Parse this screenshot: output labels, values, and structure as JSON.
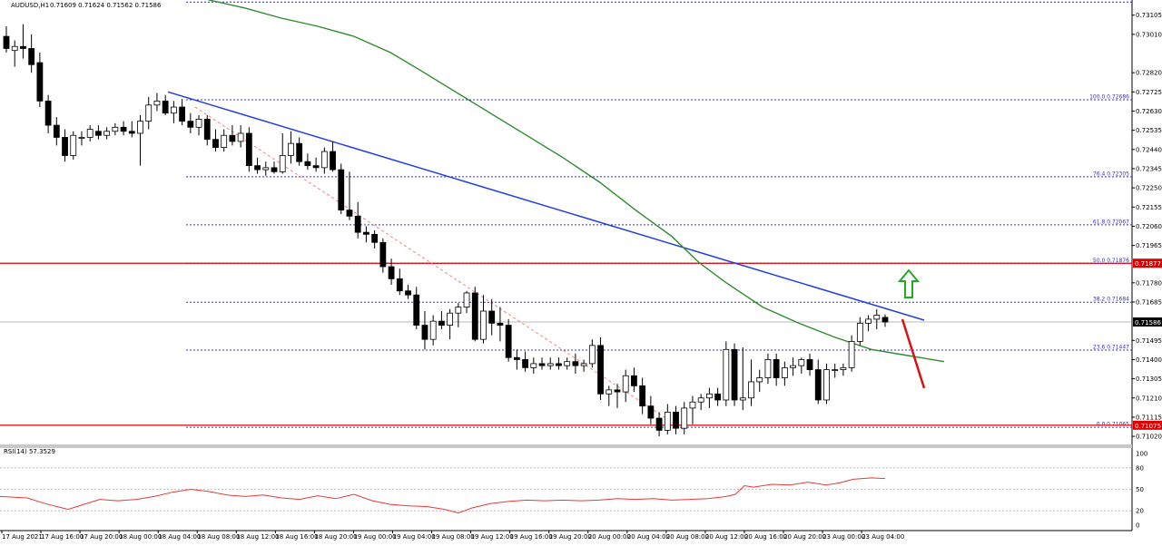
{
  "chart_data": {
    "type": "candlestick",
    "header": {
      "symbol": "AUDUSD,H1",
      "ohlc": "0.71609 0.71624 0.71562 0.71586"
    },
    "price_axis": {
      "ylim": [
        0.7098,
        0.7318
      ],
      "ticks": [
        "0.73105",
        "0.73010",
        "0.72820",
        "0.72725",
        "0.72630",
        "0.72535",
        "0.72440",
        "0.72345",
        "0.72250",
        "0.72155",
        "0.72060",
        "0.71965",
        "0.71780",
        "0.71685",
        "0.71495",
        "0.71400",
        "0.71305",
        "0.71210",
        "0.71115",
        "0.71020"
      ],
      "current_price": "0.71586"
    },
    "time_axis": {
      "labels": [
        "17 Aug 2021",
        "17 Aug 16:00",
        "17 Aug 20:00",
        "18 Aug 00:00",
        "18 Aug 04:00",
        "18 Aug 08:00",
        "18 Aug 12:00",
        "18 Aug 16:00",
        "18 Aug 20:00",
        "19 Aug 00:00",
        "19 Aug 04:00",
        "19 Aug 08:00",
        "19 Aug 12:00",
        "19 Aug 16:00",
        "19 Aug 20:00",
        "20 Aug 00:00",
        "20 Aug 04:00",
        "20 Aug 08:00",
        "20 Aug 12:00",
        "20 Aug 16:00",
        "20 Aug 20:00",
        "23 Aug 00:00",
        "23 Aug 04:00"
      ]
    },
    "candles": [
      {
        "o": 0.73,
        "h": 0.7305,
        "l": 0.7292,
        "c": 0.7294
      },
      {
        "o": 0.7293,
        "h": 0.7298,
        "l": 0.7285,
        "c": 0.7295
      },
      {
        "o": 0.7295,
        "h": 0.7306,
        "l": 0.7289,
        "c": 0.7294
      },
      {
        "o": 0.7294,
        "h": 0.7301,
        "l": 0.7282,
        "c": 0.7286
      },
      {
        "o": 0.7287,
        "h": 0.7292,
        "l": 0.7265,
        "c": 0.7268
      },
      {
        "o": 0.7268,
        "h": 0.7271,
        "l": 0.7252,
        "c": 0.7256
      },
      {
        "o": 0.7256,
        "h": 0.726,
        "l": 0.7246,
        "c": 0.725
      },
      {
        "o": 0.725,
        "h": 0.7254,
        "l": 0.7238,
        "c": 0.7241
      },
      {
        "o": 0.7241,
        "h": 0.7253,
        "l": 0.7239,
        "c": 0.7251
      },
      {
        "o": 0.725,
        "h": 0.7253,
        "l": 0.7246,
        "c": 0.725
      },
      {
        "o": 0.725,
        "h": 0.7256,
        "l": 0.7248,
        "c": 0.7254
      },
      {
        "o": 0.7253,
        "h": 0.7256,
        "l": 0.7249,
        "c": 0.7251
      },
      {
        "o": 0.7251,
        "h": 0.7255,
        "l": 0.7249,
        "c": 0.7253
      },
      {
        "o": 0.7253,
        "h": 0.7257,
        "l": 0.7251,
        "c": 0.7255
      },
      {
        "o": 0.7255,
        "h": 0.7258,
        "l": 0.7251,
        "c": 0.7253
      },
      {
        "o": 0.7253,
        "h": 0.7258,
        "l": 0.725,
        "c": 0.7252
      },
      {
        "o": 0.7252,
        "h": 0.7261,
        "l": 0.7236,
        "c": 0.7258
      },
      {
        "o": 0.7258,
        "h": 0.727,
        "l": 0.7254,
        "c": 0.7266
      },
      {
        "o": 0.7266,
        "h": 0.7272,
        "l": 0.7263,
        "c": 0.7268
      },
      {
        "o": 0.7268,
        "h": 0.7271,
        "l": 0.7261,
        "c": 0.7262
      },
      {
        "o": 0.7262,
        "h": 0.7268,
        "l": 0.7257,
        "c": 0.7265
      },
      {
        "o": 0.7265,
        "h": 0.7269,
        "l": 0.7256,
        "c": 0.7258
      },
      {
        "o": 0.7258,
        "h": 0.7262,
        "l": 0.7252,
        "c": 0.7255
      },
      {
        "o": 0.7255,
        "h": 0.7261,
        "l": 0.7251,
        "c": 0.7259
      },
      {
        "o": 0.7259,
        "h": 0.7261,
        "l": 0.7246,
        "c": 0.7249
      },
      {
        "o": 0.7249,
        "h": 0.7254,
        "l": 0.7243,
        "c": 0.7245
      },
      {
        "o": 0.7245,
        "h": 0.7254,
        "l": 0.7243,
        "c": 0.7251
      },
      {
        "o": 0.7251,
        "h": 0.7256,
        "l": 0.7246,
        "c": 0.7248
      },
      {
        "o": 0.7248,
        "h": 0.7256,
        "l": 0.7245,
        "c": 0.7252
      },
      {
        "o": 0.7252,
        "h": 0.7255,
        "l": 0.7233,
        "c": 0.7236
      },
      {
        "o": 0.7236,
        "h": 0.724,
        "l": 0.7232,
        "c": 0.7234
      },
      {
        "o": 0.7234,
        "h": 0.7238,
        "l": 0.7231,
        "c": 0.7235
      },
      {
        "o": 0.7235,
        "h": 0.7238,
        "l": 0.7232,
        "c": 0.7233
      },
      {
        "o": 0.7233,
        "h": 0.7252,
        "l": 0.7232,
        "c": 0.7241
      },
      {
        "o": 0.7241,
        "h": 0.7253,
        "l": 0.7237,
        "c": 0.7247
      },
      {
        "o": 0.7247,
        "h": 0.725,
        "l": 0.7236,
        "c": 0.7238
      },
      {
        "o": 0.7238,
        "h": 0.7242,
        "l": 0.7234,
        "c": 0.7236
      },
      {
        "o": 0.7236,
        "h": 0.724,
        "l": 0.7233,
        "c": 0.7235
      },
      {
        "o": 0.7235,
        "h": 0.7245,
        "l": 0.7232,
        "c": 0.7243
      },
      {
        "o": 0.7243,
        "h": 0.7248,
        "l": 0.7233,
        "c": 0.7234
      },
      {
        "o": 0.7234,
        "h": 0.7237,
        "l": 0.7212,
        "c": 0.7214
      },
      {
        "o": 0.7214,
        "h": 0.7233,
        "l": 0.7209,
        "c": 0.7211
      },
      {
        "o": 0.7211,
        "h": 0.7218,
        "l": 0.72,
        "c": 0.7203
      },
      {
        "o": 0.7203,
        "h": 0.7206,
        "l": 0.7198,
        "c": 0.7202
      },
      {
        "o": 0.7202,
        "h": 0.7204,
        "l": 0.7195,
        "c": 0.7198
      },
      {
        "o": 0.7198,
        "h": 0.72,
        "l": 0.7183,
        "c": 0.7186
      },
      {
        "o": 0.7186,
        "h": 0.719,
        "l": 0.7177,
        "c": 0.718
      },
      {
        "o": 0.718,
        "h": 0.7185,
        "l": 0.7172,
        "c": 0.7174
      },
      {
        "o": 0.7174,
        "h": 0.7177,
        "l": 0.717,
        "c": 0.7172
      },
      {
        "o": 0.7172,
        "h": 0.7176,
        "l": 0.7155,
        "c": 0.7157
      },
      {
        "o": 0.7157,
        "h": 0.7164,
        "l": 0.7145,
        "c": 0.715
      },
      {
        "o": 0.715,
        "h": 0.7162,
        "l": 0.7147,
        "c": 0.7159
      },
      {
        "o": 0.7159,
        "h": 0.7164,
        "l": 0.7155,
        "c": 0.7157
      },
      {
        "o": 0.7157,
        "h": 0.7165,
        "l": 0.715,
        "c": 0.7163
      },
      {
        "o": 0.7163,
        "h": 0.7168,
        "l": 0.7156,
        "c": 0.7166
      },
      {
        "o": 0.7166,
        "h": 0.7174,
        "l": 0.7163,
        "c": 0.7173
      },
      {
        "o": 0.7173,
        "h": 0.7176,
        "l": 0.7149,
        "c": 0.715
      },
      {
        "o": 0.715,
        "h": 0.7172,
        "l": 0.7148,
        "c": 0.7164
      },
      {
        "o": 0.7164,
        "h": 0.717,
        "l": 0.7152,
        "c": 0.7158
      },
      {
        "o": 0.7158,
        "h": 0.7166,
        "l": 0.7149,
        "c": 0.7157
      },
      {
        "o": 0.7157,
        "h": 0.716,
        "l": 0.7139,
        "c": 0.7141
      },
      {
        "o": 0.7141,
        "h": 0.7145,
        "l": 0.7135,
        "c": 0.714
      },
      {
        "o": 0.714,
        "h": 0.7144,
        "l": 0.7134,
        "c": 0.7136
      },
      {
        "o": 0.7136,
        "h": 0.7141,
        "l": 0.7133,
        "c": 0.7138
      },
      {
        "o": 0.7138,
        "h": 0.7141,
        "l": 0.7135,
        "c": 0.7137
      },
      {
        "o": 0.7137,
        "h": 0.7141,
        "l": 0.7135,
        "c": 0.7138
      },
      {
        "o": 0.7138,
        "h": 0.7141,
        "l": 0.7135,
        "c": 0.7137
      },
      {
        "o": 0.7137,
        "h": 0.7141,
        "l": 0.7135,
        "c": 0.7139
      },
      {
        "o": 0.7139,
        "h": 0.7143,
        "l": 0.7133,
        "c": 0.7137
      },
      {
        "o": 0.7137,
        "h": 0.714,
        "l": 0.7134,
        "c": 0.7138
      },
      {
        "o": 0.7138,
        "h": 0.715,
        "l": 0.7136,
        "c": 0.7147
      },
      {
        "o": 0.7147,
        "h": 0.7151,
        "l": 0.712,
        "c": 0.7123
      },
      {
        "o": 0.7123,
        "h": 0.7127,
        "l": 0.7117,
        "c": 0.7125
      },
      {
        "o": 0.7125,
        "h": 0.7128,
        "l": 0.7116,
        "c": 0.7124
      },
      {
        "o": 0.7124,
        "h": 0.7135,
        "l": 0.7119,
        "c": 0.7132
      },
      {
        "o": 0.7132,
        "h": 0.7136,
        "l": 0.7124,
        "c": 0.7127
      },
      {
        "o": 0.7127,
        "h": 0.7131,
        "l": 0.7113,
        "c": 0.7117
      },
      {
        "o": 0.7117,
        "h": 0.7122,
        "l": 0.7108,
        "c": 0.7111
      },
      {
        "o": 0.7111,
        "h": 0.7114,
        "l": 0.7102,
        "c": 0.7105
      },
      {
        "o": 0.7105,
        "h": 0.7118,
        "l": 0.7103,
        "c": 0.7114
      },
      {
        "o": 0.7114,
        "h": 0.7117,
        "l": 0.7103,
        "c": 0.7106
      },
      {
        "o": 0.7106,
        "h": 0.7119,
        "l": 0.7103,
        "c": 0.7116
      },
      {
        "o": 0.7116,
        "h": 0.7122,
        "l": 0.7108,
        "c": 0.7119
      },
      {
        "o": 0.7119,
        "h": 0.7123,
        "l": 0.7115,
        "c": 0.7121
      },
      {
        "o": 0.7121,
        "h": 0.7126,
        "l": 0.7116,
        "c": 0.7123
      },
      {
        "o": 0.7123,
        "h": 0.7126,
        "l": 0.7117,
        "c": 0.712
      },
      {
        "o": 0.712,
        "h": 0.7149,
        "l": 0.7117,
        "c": 0.7145
      },
      {
        "o": 0.7145,
        "h": 0.7148,
        "l": 0.7117,
        "c": 0.712
      },
      {
        "o": 0.712,
        "h": 0.7146,
        "l": 0.7115,
        "c": 0.7121
      },
      {
        "o": 0.7121,
        "h": 0.714,
        "l": 0.7117,
        "c": 0.7129
      },
      {
        "o": 0.7129,
        "h": 0.7135,
        "l": 0.7124,
        "c": 0.7131
      },
      {
        "o": 0.7131,
        "h": 0.7143,
        "l": 0.7128,
        "c": 0.714
      },
      {
        "o": 0.714,
        "h": 0.7143,
        "l": 0.7127,
        "c": 0.7131
      },
      {
        "o": 0.7131,
        "h": 0.7139,
        "l": 0.7127,
        "c": 0.7136
      },
      {
        "o": 0.7136,
        "h": 0.7141,
        "l": 0.7132,
        "c": 0.7137
      },
      {
        "o": 0.7137,
        "h": 0.7141,
        "l": 0.7133,
        "c": 0.714
      },
      {
        "o": 0.714,
        "h": 0.7143,
        "l": 0.7132,
        "c": 0.7135
      },
      {
        "o": 0.7135,
        "h": 0.714,
        "l": 0.7118,
        "c": 0.712
      },
      {
        "o": 0.712,
        "h": 0.7138,
        "l": 0.7118,
        "c": 0.7135
      },
      {
        "o": 0.7135,
        "h": 0.7138,
        "l": 0.7131,
        "c": 0.7135
      },
      {
        "o": 0.7135,
        "h": 0.7138,
        "l": 0.7132,
        "c": 0.7136
      },
      {
        "o": 0.7136,
        "h": 0.7152,
        "l": 0.7134,
        "c": 0.7149
      },
      {
        "o": 0.7149,
        "h": 0.7161,
        "l": 0.7147,
        "c": 0.7158
      },
      {
        "o": 0.7158,
        "h": 0.7162,
        "l": 0.7154,
        "c": 0.716
      },
      {
        "o": 0.716,
        "h": 0.7165,
        "l": 0.7155,
        "c": 0.7162
      },
      {
        "o": 0.71609,
        "h": 0.71624,
        "l": 0.71562,
        "c": 0.71586
      }
    ],
    "sma": [
      [
        0.7318,
        230
      ],
      [
        0.7314,
        270
      ],
      [
        0.7309,
        310
      ],
      [
        0.7305,
        350
      ],
      [
        0.73,
        390
      ],
      [
        0.7292,
        430
      ],
      [
        0.7284,
        460
      ],
      [
        0.7273,
        500
      ],
      [
        0.7262,
        540
      ],
      [
        0.7251,
        580
      ],
      [
        0.724,
        620
      ],
      [
        0.7228,
        660
      ],
      [
        0.7214,
        700
      ],
      [
        0.7201,
        740
      ],
      [
        0.7188,
        770
      ],
      [
        0.7178,
        800
      ],
      [
        0.7166,
        840
      ],
      [
        0.7158,
        880
      ],
      [
        0.7151,
        920
      ],
      [
        0.7145,
        960
      ],
      [
        0.7142,
        1000
      ],
      [
        0.7139,
        1040
      ]
    ],
    "trendline": {
      "start": [
        185,
        0.72725
      ],
      "end": [
        1018,
        0.71595
      ]
    },
    "down_path": {
      "start": [
        215,
        0.7265
      ],
      "end": [
        752,
        0.71055
      ]
    },
    "fib_levels": [
      {
        "label": "100.0 0.72686",
        "price": 0.72686
      },
      {
        "label": "76.4 0.72305",
        "price": 0.72305
      },
      {
        "label": "61.8 0.72067",
        "price": 0.72067
      },
      {
        "label": "50.0 0.71876",
        "price": 0.71876
      },
      {
        "label": "38.2 0.71684",
        "price": 0.71684
      },
      {
        "label": "23.6 0.71447",
        "price": 0.71447
      },
      {
        "label": "0.0 0.71065",
        "price": 0.71065
      }
    ],
    "red_levels": [
      {
        "label": "0.71877",
        "price": 0.71877
      },
      {
        "label": "0.71075",
        "price": 0.71075
      }
    ],
    "top_dotted_price": 0.7317,
    "rsi": {
      "label": "RSI(14) 57.3529",
      "ticks": [
        "100",
        "80",
        "50",
        "20",
        "0"
      ],
      "levels": [
        80,
        50,
        20
      ],
      "values": [
        [
          0,
          40
        ],
        [
          30,
          38
        ],
        [
          50,
          30
        ],
        [
          75,
          22
        ],
        [
          90,
          28
        ],
        [
          110,
          36
        ],
        [
          130,
          34
        ],
        [
          150,
          36
        ],
        [
          170,
          40
        ],
        [
          190,
          46
        ],
        [
          210,
          50
        ],
        [
          230,
          47
        ],
        [
          250,
          42
        ],
        [
          270,
          40
        ],
        [
          290,
          42
        ],
        [
          310,
          38
        ],
        [
          330,
          36
        ],
        [
          350,
          41
        ],
        [
          370,
          37
        ],
        [
          390,
          43
        ],
        [
          410,
          34
        ],
        [
          430,
          29
        ],
        [
          450,
          27
        ],
        [
          470,
          26
        ],
        [
          490,
          22
        ],
        [
          505,
          17
        ],
        [
          520,
          24
        ],
        [
          540,
          30
        ],
        [
          560,
          33
        ],
        [
          580,
          35
        ],
        [
          600,
          34
        ],
        [
          620,
          35
        ],
        [
          640,
          34
        ],
        [
          660,
          35
        ],
        [
          680,
          37
        ],
        [
          700,
          36
        ],
        [
          720,
          37
        ],
        [
          740,
          35
        ],
        [
          760,
          36
        ],
        [
          780,
          37
        ],
        [
          800,
          40
        ],
        [
          810,
          43
        ],
        [
          820,
          55
        ],
        [
          830,
          53
        ],
        [
          850,
          57
        ],
        [
          870,
          56
        ],
        [
          890,
          60
        ],
        [
          910,
          56
        ],
        [
          925,
          59
        ],
        [
          940,
          64
        ],
        [
          960,
          66
        ],
        [
          975,
          65
        ]
      ]
    },
    "annotations": [
      {
        "type": "arrow-up",
        "color": "#22aa22"
      },
      {
        "type": "arrow-down-line",
        "color": "#dd1111"
      }
    ]
  }
}
